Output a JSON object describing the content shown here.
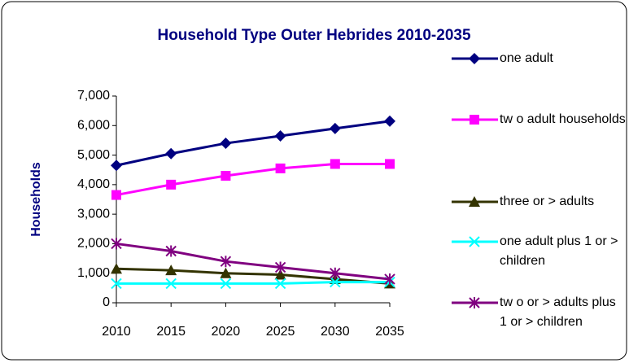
{
  "chart_data": {
    "type": "line",
    "title": "Household Type Outer Hebrides 2010-2035",
    "y_label": "Households",
    "categories": [
      "2010",
      "2015",
      "2020",
      "2025",
      "2030",
      "2035"
    ],
    "series": [
      {
        "name": "one adult",
        "color": "#000080",
        "marker": "diamond",
        "values": [
          4650,
          5050,
          5400,
          5650,
          5900,
          6150
        ]
      },
      {
        "name": "tw o adult households",
        "color": "#ff00ff",
        "marker": "square",
        "values": [
          3650,
          4000,
          4300,
          4550,
          4700,
          4700
        ]
      },
      {
        "name": "three or > adults",
        "color": "#333300",
        "marker": "triangle",
        "values": [
          1150,
          1100,
          1000,
          950,
          800,
          650
        ]
      },
      {
        "name": "one adult plus 1 or > children",
        "color": "#00ffff",
        "marker": "x",
        "values": [
          650,
          650,
          650,
          650,
          700,
          700
        ]
      },
      {
        "name": "tw o or > adults plus 1 or > children",
        "color": "#800080",
        "marker": "star",
        "values": [
          2000,
          1750,
          1400,
          1200,
          1000,
          800
        ]
      }
    ],
    "ylim": [
      0,
      7000
    ],
    "yticks": [
      0,
      {
        "value": 1000,
        "label": "1,000"
      },
      {
        "value": 2000,
        "label": "2,000"
      },
      {
        "value": 3000,
        "label": "3,000"
      },
      {
        "value": 4000,
        "label": "4,000"
      },
      {
        "value": 5000,
        "label": "5,000"
      },
      {
        "value": 6000,
        "label": "6,000"
      },
      {
        "value": 7000,
        "label": "7,000"
      }
    ],
    "legend": "right"
  }
}
